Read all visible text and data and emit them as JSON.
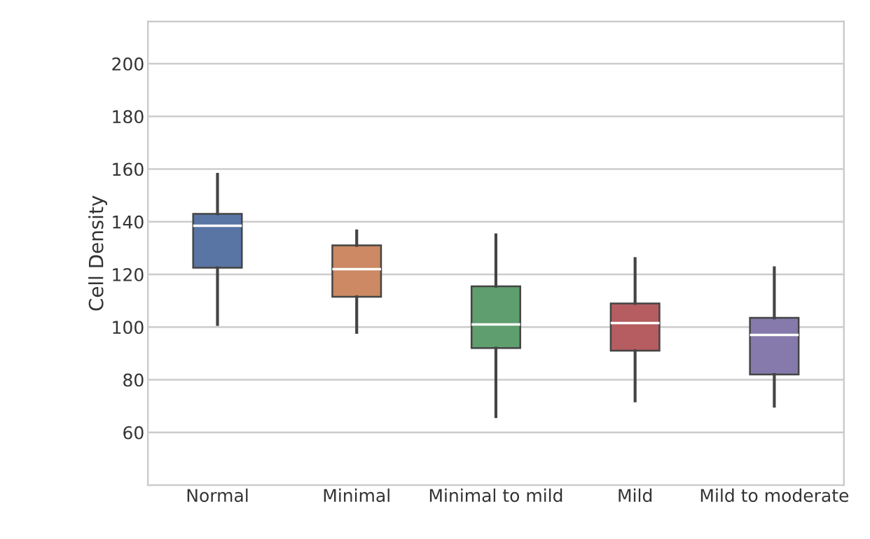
{
  "chart_data": {
    "type": "box",
    "ylabel": "Cell Density",
    "categories": [
      "Normal",
      "Minimal",
      "Minimal to mild",
      "Mild",
      "Mild to moderate"
    ],
    "boxes": [
      {
        "low": 101,
        "q1": 122.5,
        "median": 138.5,
        "q3": 143,
        "high": 158
      },
      {
        "low": 98,
        "q1": 111.5,
        "median": 122,
        "q3": 131,
        "high": 136.5
      },
      {
        "low": 66,
        "q1": 92,
        "median": 101,
        "q3": 115.5,
        "high": 135
      },
      {
        "low": 72,
        "q1": 91,
        "median": 101.5,
        "q3": 109,
        "high": 126
      },
      {
        "low": 70,
        "q1": 82,
        "median": 97,
        "q3": 103.5,
        "high": 122.5
      }
    ],
    "colors": [
      "#5875a4",
      "#cc8963",
      "#5f9e6e",
      "#b55d60",
      "#857aab"
    ],
    "ylim": [
      40,
      216
    ],
    "yticks": [
      60,
      80,
      100,
      120,
      140,
      160,
      180,
      200
    ],
    "grid": "y"
  }
}
